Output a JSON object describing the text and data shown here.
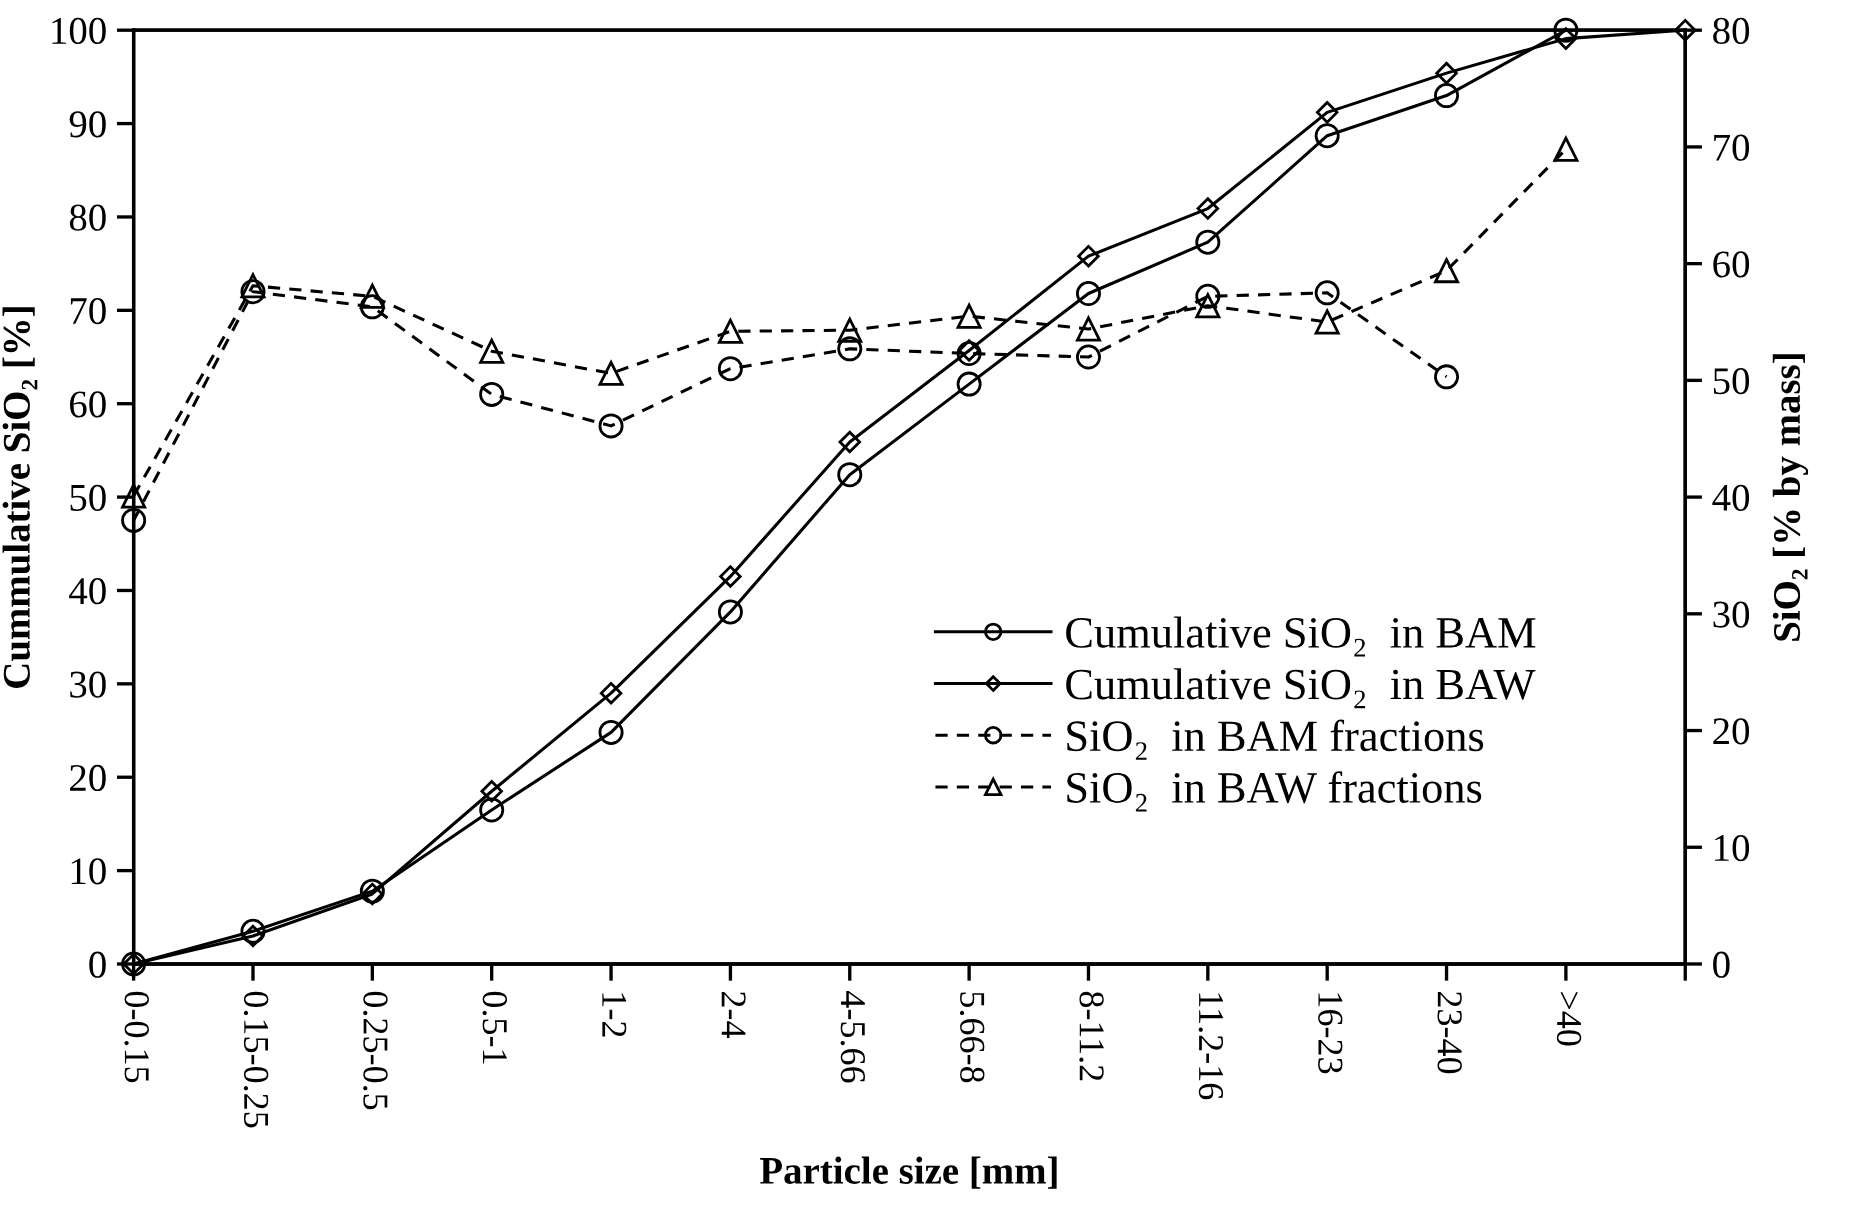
{
  "chart_data": {
    "type": "line",
    "xlabel": "Particle size [mm]",
    "ylabel": "Cummulative SiO₂ [%]",
    "y2label": "SiO₂ [% by mass]",
    "categories": [
      "0-0.15",
      "0.15-0.25",
      "0.25-0.5",
      "0.5-1",
      "1-2",
      "2-4",
      "4-5.66",
      "5.66-8",
      "8-11.2",
      "11.2-16",
      "16-23",
      "23-40",
      ">40",
      null
    ],
    "series": [
      {
        "name": "Cumulative SiO₂  in BAM",
        "color": "#000000",
        "marker": "circle",
        "line_style": "solid",
        "values": [
          0,
          3.5,
          7.8,
          16.5,
          24.8,
          37.7,
          52.4,
          62.1,
          71.8,
          77.3,
          88.7,
          93,
          100,
          null
        ]
      },
      {
        "name": "Cumulative SiO₂  in BAW",
        "color": "#000000",
        "marker": "diamond",
        "line_style": "solid",
        "values": [
          0,
          3,
          7.5,
          18.5,
          29,
          41.5,
          55.9,
          65.7,
          75.8,
          80.9,
          91.2,
          95.4,
          99.1,
          100
        ]
      },
      {
        "name": "SiO₂  in BAM fractions",
        "color": "#000000",
        "marker": "circle",
        "line_style": "dashed",
        "axis": "y2",
        "values": [
          38,
          57.6,
          56.3,
          48.8,
          46.1,
          51,
          52.7,
          52.3,
          52,
          57.2,
          57.5,
          50.3,
          null,
          null
        ]
      },
      {
        "name": "SiO₂  in BAW fractions",
        "color": "#000000",
        "marker": "triangle",
        "line_style": "dashed",
        "axis": "y2",
        "values": [
          40.1,
          58.1,
          57.2,
          52.5,
          50.6,
          54.2,
          54.3,
          55.5,
          54.4,
          56.4,
          55,
          59.4,
          69.8,
          null
        ]
      }
    ],
    "ylim": [
      0,
      100
    ],
    "yticks": [
      0,
      10,
      20,
      30,
      40,
      50,
      60,
      70,
      80,
      90,
      100
    ],
    "y2lim": [
      0,
      80
    ],
    "y2ticks": [
      0,
      10,
      20,
      30,
      40,
      50,
      60,
      70,
      80
    ],
    "legend": "bottom right",
    "grid": false
  }
}
